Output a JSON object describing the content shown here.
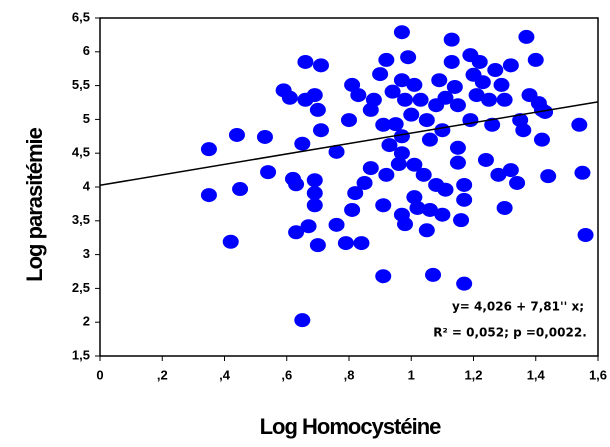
{
  "chart_data": {
    "type": "scatter",
    "xlabel": "Log Homocystéine",
    "ylabel": "Log parasitémie",
    "annotations": [
      "y= 4,026 + 7,81'' x;",
      "R² = 0,052; p =0,0022."
    ],
    "xlim": [
      0,
      1.6
    ],
    "ylim": [
      1.5,
      6.5
    ],
    "xticks": [
      0,
      {
        "value": 0.2,
        "label": ",2"
      },
      {
        "value": 0.4,
        "label": ",4"
      },
      {
        "value": 0.6,
        "label": ",6"
      },
      {
        "value": 0.8,
        "label": ",8"
      },
      1,
      {
        "value": 1.2,
        "label": "1,2"
      },
      {
        "value": 1.4,
        "label": "1,4"
      },
      {
        "value": 1.6,
        "label": "1,6"
      }
    ],
    "yticks": [
      {
        "value": 1.5,
        "label": "1,5"
      },
      2,
      {
        "value": 2.5,
        "label": "2,5"
      },
      3,
      {
        "value": 3.5,
        "label": "3,5"
      },
      4,
      {
        "value": 4.5,
        "label": "4,5"
      },
      5,
      {
        "value": 5.5,
        "label": "5,5"
      },
      6,
      {
        "value": 6.5,
        "label": "6,5"
      }
    ],
    "grid": false,
    "series": [
      {
        "color": "#0000ff",
        "x": [
          0.35,
          0.35,
          0.44,
          0.45,
          0.42,
          0.53,
          0.54,
          0.59,
          0.61,
          0.62,
          0.63,
          0.66,
          0.66,
          0.65,
          0.63,
          0.67,
          0.65,
          0.71,
          0.69,
          0.7,
          0.71,
          0.69,
          0.69,
          0.69,
          0.7,
          0.76,
          0.76,
          0.79,
          0.81,
          0.83,
          0.8,
          0.82,
          0.81,
          0.84,
          0.85,
          0.87,
          0.87,
          0.88,
          0.9,
          0.92,
          0.91,
          0.93,
          0.92,
          0.91,
          0.91,
          0.94,
          0.95,
          0.96,
          0.97,
          0.97,
          0.98,
          0.97,
          0.97,
          0.97,
          0.98,
          0.99,
          1.0,
          1.01,
          1.01,
          1.01,
          1.02,
          1.03,
          1.05,
          1.04,
          1.05,
          1.06,
          1.07,
          1.06,
          1.08,
          1.08,
          1.09,
          1.1,
          1.11,
          1.11,
          1.1,
          1.13,
          1.13,
          1.14,
          1.15,
          1.15,
          1.15,
          1.16,
          1.17,
          1.17,
          1.17,
          1.19,
          1.2,
          1.19,
          1.21,
          1.22,
          1.23,
          1.24,
          1.25,
          1.27,
          1.26,
          1.29,
          1.28,
          1.3,
          1.3,
          1.32,
          1.32,
          1.34,
          1.35,
          1.36,
          1.37,
          1.38,
          1.4,
          1.42,
          1.41,
          1.42,
          1.43,
          1.44,
          1.54,
          1.55,
          1.56
        ],
        "values": [
          4.56,
          3.88,
          4.77,
          3.97,
          3.19,
          4.74,
          4.22,
          5.43,
          5.32,
          4.12,
          4.04,
          5.85,
          5.29,
          4.64,
          3.33,
          3.42,
          2.03,
          5.8,
          5.36,
          5.14,
          4.84,
          4.1,
          3.91,
          3.73,
          3.14,
          4.52,
          3.44,
          3.17,
          5.51,
          5.36,
          4.99,
          3.91,
          3.66,
          3.17,
          4.06,
          4.28,
          5.14,
          5.29,
          5.67,
          5.88,
          4.92,
          4.62,
          4.18,
          3.73,
          2.68,
          5.41,
          4.93,
          4.34,
          6.29,
          5.58,
          5.29,
          4.75,
          4.5,
          3.59,
          3.45,
          5.92,
          5.07,
          4.33,
          5.51,
          3.85,
          3.69,
          5.29,
          4.99,
          4.18,
          3.36,
          3.66,
          2.7,
          4.7,
          4.03,
          5.21,
          5.58,
          4.84,
          5.32,
          3.96,
          3.59,
          6.18,
          5.85,
          5.48,
          5.21,
          4.58,
          4.36,
          3.51,
          3.81,
          2.57,
          4.03,
          5.95,
          5.66,
          4.99,
          5.36,
          5.85,
          5.55,
          4.4,
          5.29,
          5.73,
          4.92,
          5.51,
          4.18,
          5.29,
          3.69,
          5.8,
          4.25,
          4.06,
          4.99,
          4.84,
          6.22,
          5.36,
          5.88,
          5.14,
          5.24,
          4.7,
          5.11,
          4.16,
          4.92,
          4.21,
          3.29
        ]
      },
      {
        "type": "line",
        "color": "#000000",
        "x": [
          0,
          1.6
        ],
        "values": [
          4.026,
          5.26
        ]
      }
    ]
  }
}
